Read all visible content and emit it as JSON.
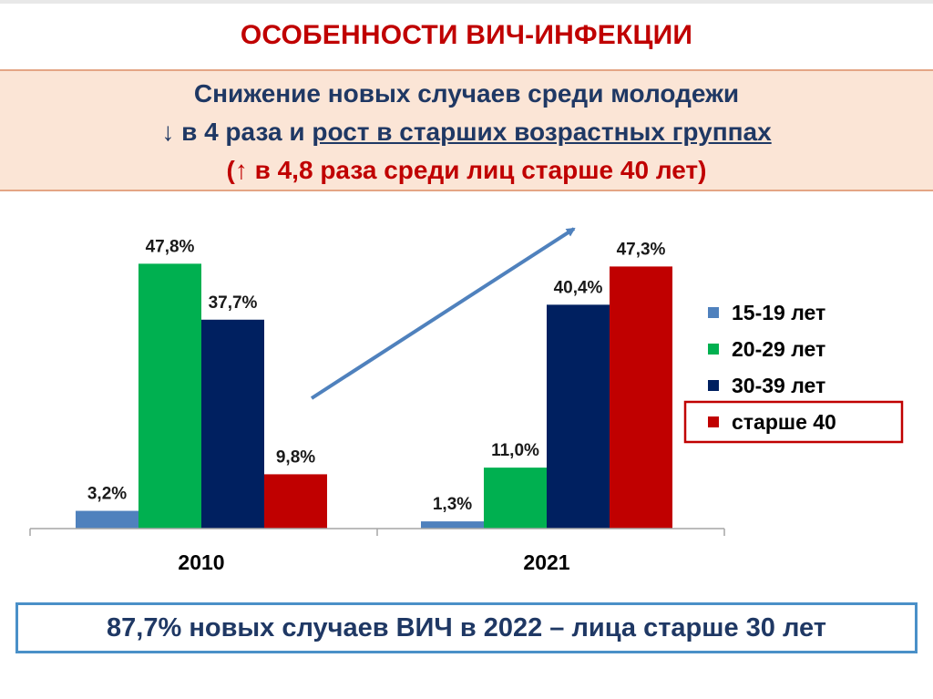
{
  "page_title": "ОСОБЕННОСТИ ВИЧ-ИНФЕКЦИИ",
  "highlight": {
    "line1": "Снижение новых случаев среди молодежи",
    "line2_prefix": "↓ в 4 раза и ",
    "line2_underlined": "рост в старших возрастных группах",
    "line3": "(↑ в 4,8 раза среди лиц старше 40 лет)"
  },
  "footer": "87,7% новых случаев ВИЧ в 2022 – лица старше 30 лет",
  "colors": {
    "accent_red": "#c00000",
    "navy": "#1f3864",
    "highlight_bg": "#fbe5d6",
    "frame_blue": "#4a90c8"
  },
  "chart_data": {
    "type": "bar",
    "categories": [
      "2010",
      "2021"
    ],
    "series": [
      {
        "name": "15-19 лет",
        "color": "#4f81bd",
        "values": [
          3.2,
          1.3
        ],
        "labels": [
          "3,2%",
          "1,3%"
        ]
      },
      {
        "name": "20-29 лет",
        "color": "#00b050",
        "values": [
          47.8,
          11.0
        ],
        "labels": [
          "47,8%",
          "11,0%"
        ]
      },
      {
        "name": "30-39 лет",
        "color": "#002060",
        "values": [
          37.7,
          40.4
        ],
        "labels": [
          "37,7%",
          "40,4%"
        ]
      },
      {
        "name": "старше 40",
        "color": "#c00000",
        "values": [
          9.8,
          47.3
        ],
        "labels": [
          "9,8%",
          "47,3%"
        ]
      }
    ],
    "ylim": [
      0,
      50
    ],
    "grid": false,
    "legend_position": "right",
    "highlighted_legend_entry": "старше 40",
    "annotation": "upward-trend-arrow"
  }
}
